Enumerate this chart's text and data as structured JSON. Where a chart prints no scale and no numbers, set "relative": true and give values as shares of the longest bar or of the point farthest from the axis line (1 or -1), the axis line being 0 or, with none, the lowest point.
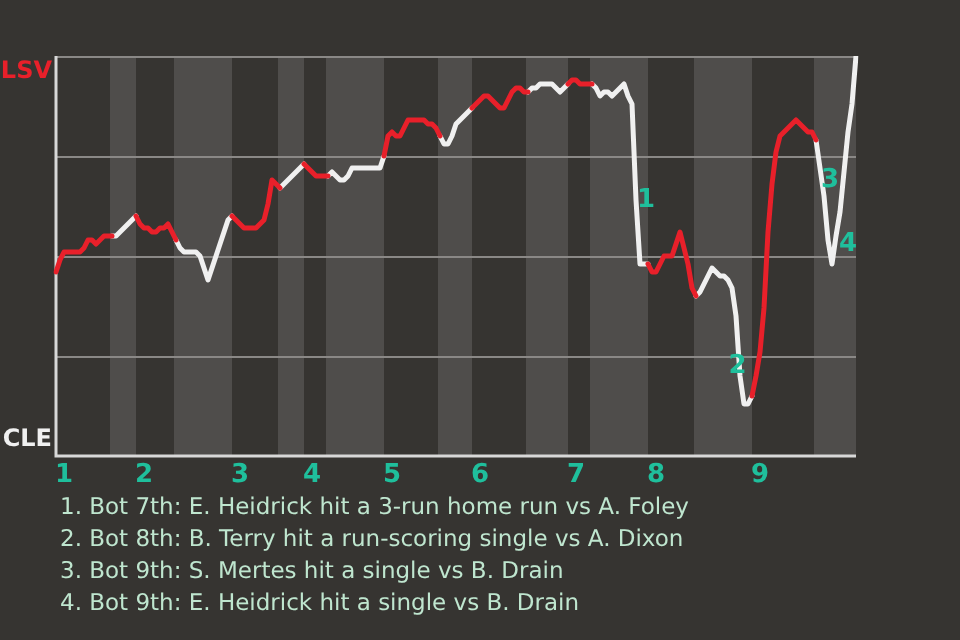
{
  "chart_data": {
    "type": "line",
    "relative": true,
    "categories": [
      null,
      null,
      "1",
      null,
      null,
      null,
      null,
      null,
      null,
      null,
      null,
      null,
      null,
      null,
      null,
      null,
      null,
      null,
      null,
      null,
      null,
      null,
      "2",
      null,
      null,
      null,
      null,
      null,
      null,
      null,
      null,
      null,
      null,
      null,
      null,
      null,
      null,
      null,
      null,
      null,
      null,
      null,
      null,
      null,
      null,
      null,
      "3",
      null,
      null,
      null,
      null,
      null,
      null,
      null,
      null,
      null,
      null,
      null,
      null,
      null,
      null,
      null,
      null,
      null,
      "4",
      null,
      null,
      null,
      null,
      null,
      null,
      null,
      null,
      null,
      null,
      null,
      null,
      null,
      null,
      null,
      null,
      null,
      null,
      null,
      "5",
      null,
      null,
      null,
      null,
      null,
      null,
      null,
      null,
      null,
      null,
      null,
      null,
      null,
      null,
      null,
      null,
      null,
      null,
      null,
      null,
      null,
      "6",
      null,
      null,
      null,
      null,
      null,
      null,
      null,
      null,
      null,
      null,
      null,
      null,
      null,
      null,
      null,
      null,
      null,
      null,
      null,
      null,
      null,
      null,
      null,
      "7",
      null,
      null,
      null,
      null,
      null,
      null,
      null,
      null,
      null,
      null,
      null,
      null,
      null,
      null,
      null,
      null,
      null,
      null,
      null,
      "8",
      null,
      null,
      null,
      null,
      null,
      null,
      null,
      null,
      null,
      null,
      null,
      null,
      null,
      null,
      null,
      null,
      null,
      null,
      null,
      null,
      null,
      null,
      null,
      null,
      null,
      "9",
      null,
      null,
      null,
      null,
      null,
      null,
      null,
      null,
      null,
      null,
      null,
      null,
      null,
      null,
      null,
      null,
      null,
      null,
      null,
      null,
      null,
      null,
      null,
      null
    ],
    "grid": "y",
    "legend": false,
    "marker": "none",
    "line_style": "solid",
    "series": [
      {
        "color": "#e8202a",
        "values": [
          0.46,
          0.49,
          0.51,
          0.51,
          0.51,
          0.51,
          0.51,
          0.52,
          0.54,
          0.54,
          0.53,
          0.54,
          0.55,
          0.55,
          0.55,
          null,
          null,
          null,
          null,
          null,
          0.6,
          0.58,
          0.57,
          0.57,
          0.56,
          0.56,
          0.57,
          0.57,
          0.58,
          0.56,
          0.54,
          null,
          null,
          null,
          null,
          null,
          null,
          null,
          null,
          null,
          null,
          null,
          null,
          null,
          0.6,
          0.59,
          0.58,
          0.57,
          0.57,
          0.57,
          0.57,
          0.58,
          0.59,
          0.63,
          0.69,
          0.68,
          0.67,
          null,
          null,
          null,
          null,
          null,
          0.73,
          0.72,
          0.71,
          0.7,
          0.7,
          0.7,
          0.7,
          null,
          null,
          null,
          null,
          null,
          null,
          null,
          null,
          null,
          null,
          null,
          null,
          null,
          0.75,
          0.8,
          0.81,
          0.8,
          0.8,
          0.82,
          0.84,
          0.84,
          0.84,
          0.84,
          0.84,
          0.83,
          0.83,
          0.82,
          0.8,
          null,
          null,
          null,
          null,
          null,
          null,
          null,
          0.87,
          0.88,
          0.89,
          0.9,
          0.9,
          0.89,
          0.88,
          0.87,
          0.87,
          0.89,
          0.91,
          0.92,
          0.92,
          0.91,
          0.91,
          null,
          null,
          null,
          null,
          null,
          null,
          null,
          null,
          null,
          0.93,
          0.94,
          0.94,
          0.93,
          0.93,
          0.93,
          0.93,
          null,
          null,
          null,
          null,
          null,
          null,
          null,
          null,
          null,
          null,
          null,
          null,
          null,
          0.48,
          0.46,
          0.46,
          0.48,
          0.5,
          0.5,
          0.5,
          0.53,
          0.56,
          0.52,
          0.48,
          0.42,
          0.4,
          null,
          null,
          null,
          null,
          null,
          null,
          null,
          null,
          null,
          null,
          null,
          null,
          null,
          0.15,
          0.2,
          0.26,
          0.37,
          0.56,
          0.68,
          0.76,
          0.8,
          0.81,
          0.82,
          0.83,
          0.84,
          0.83,
          0.82,
          0.81,
          0.81,
          0.79,
          null,
          null,
          null,
          null,
          null,
          null,
          null,
          null,
          null,
          null
        ]
      },
      {
        "color": "#f0f0f0",
        "values": [
          null,
          null,
          null,
          null,
          null,
          null,
          null,
          null,
          null,
          null,
          null,
          null,
          null,
          null,
          0.55,
          0.55,
          0.56,
          0.57,
          0.58,
          0.59,
          0.6,
          null,
          null,
          null,
          null,
          null,
          null,
          null,
          null,
          null,
          0.54,
          0.52,
          0.51,
          0.51,
          0.51,
          0.51,
          0.5,
          0.47,
          0.44,
          0.47,
          0.5,
          0.53,
          0.56,
          0.59,
          0.6,
          null,
          null,
          null,
          null,
          null,
          null,
          null,
          null,
          null,
          null,
          null,
          0.67,
          0.68,
          0.69,
          0.7,
          0.71,
          0.72,
          0.73,
          null,
          null,
          null,
          null,
          null,
          0.7,
          0.71,
          0.7,
          0.69,
          0.69,
          0.7,
          0.72,
          0.72,
          0.72,
          0.72,
          0.72,
          0.72,
          0.72,
          0.72,
          0.75,
          null,
          null,
          null,
          null,
          null,
          null,
          null,
          null,
          null,
          null,
          null,
          null,
          null,
          0.8,
          0.78,
          0.78,
          0.8,
          0.83,
          0.84,
          0.85,
          0.86,
          0.87,
          null,
          null,
          null,
          null,
          null,
          null,
          null,
          null,
          null,
          null,
          null,
          null,
          null,
          0.91,
          0.92,
          0.92,
          0.93,
          0.93,
          0.93,
          0.93,
          0.92,
          0.91,
          0.92,
          0.93,
          null,
          null,
          null,
          null,
          null,
          0.93,
          0.92,
          0.9,
          0.91,
          0.91,
          0.9,
          0.91,
          0.92,
          0.93,
          0.9,
          0.88,
          0.64,
          0.48,
          0.48,
          0.48,
          null,
          null,
          null,
          null,
          null,
          null,
          null,
          null,
          null,
          null,
          null,
          0.4,
          0.41,
          0.43,
          0.45,
          0.47,
          0.46,
          0.45,
          0.45,
          0.44,
          0.42,
          0.35,
          0.2,
          0.13,
          0.13,
          0.15,
          null,
          null,
          null,
          null,
          null,
          null,
          null,
          null,
          null,
          null,
          null,
          null,
          null,
          null,
          null,
          0.79,
          0.72,
          0.65,
          0.54,
          0.48,
          0.55,
          0.61,
          0.71,
          0.81,
          0.88,
          1
        ]
      }
    ],
    "annotations": [
      "LSV",
      "CLE",
      "1",
      "2",
      "3",
      "4",
      "1. Bot 7th: E. Heidrick hit a 3-run home run vs A. Foley",
      "2. Bot 8th: B. Terry hit a run-scoring single vs A. Dixon",
      "3. Bot 9th: S. Mertes hit a single vs B. Drain",
      "4. Bot 9th: E. Heidrick hit a single vs B. Drain"
    ]
  }
}
